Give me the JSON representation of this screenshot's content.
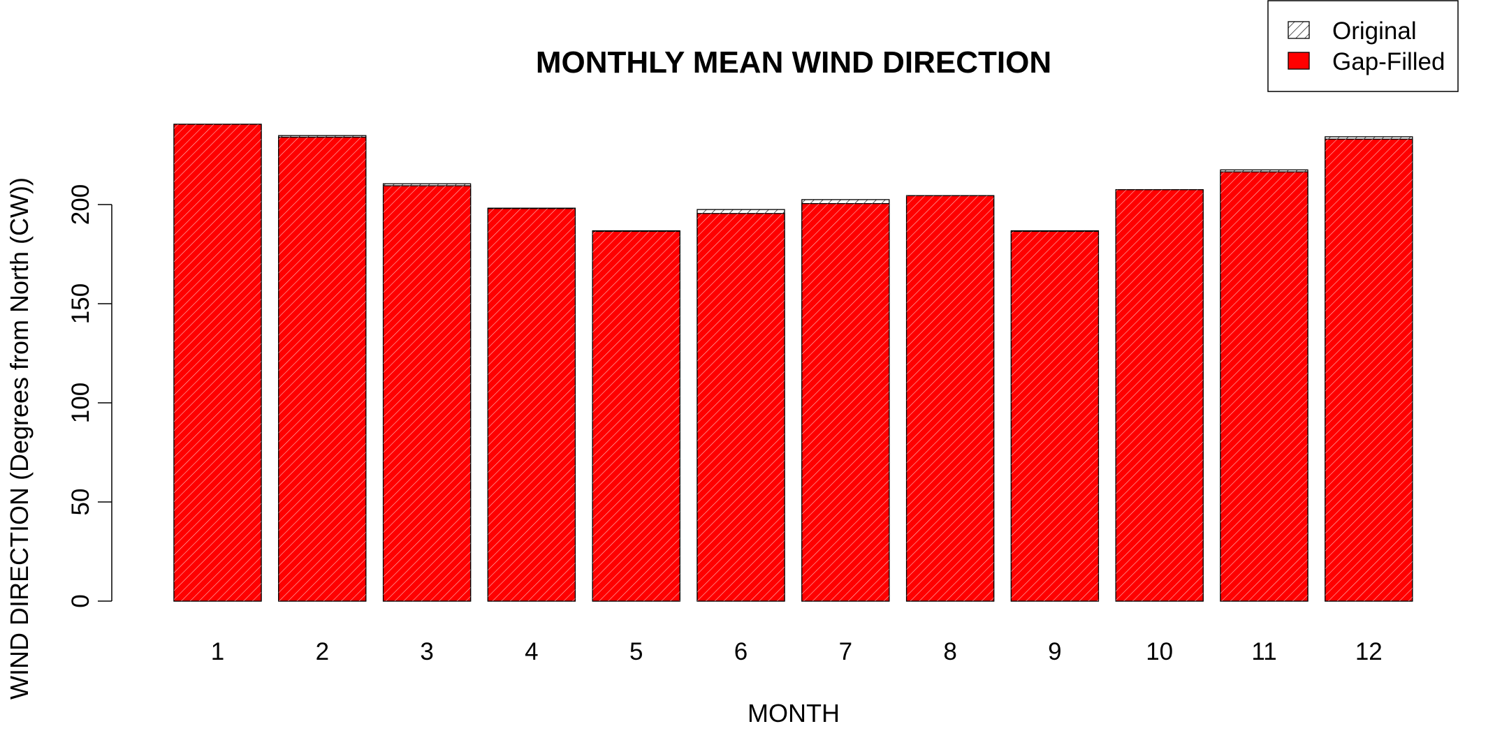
{
  "chart_data": {
    "type": "bar",
    "title": "MONTHLY MEAN WIND DIRECTION",
    "xlabel": "MONTH",
    "ylabel": "WIND DIRECTION (Degrees from North (CW))",
    "categories": [
      "1",
      "2",
      "3",
      "4",
      "5",
      "6",
      "7",
      "8",
      "9",
      "10",
      "11",
      "12"
    ],
    "series": [
      {
        "name": "Original",
        "fill": "hatched",
        "values": [
          240.5,
          234.8,
          210.5,
          198.2,
          186.8,
          197.5,
          202.5,
          204.5,
          186.8,
          207.5,
          217.5,
          234.2
        ]
      },
      {
        "name": "Gap-Filled",
        "fill": "#ff0000",
        "values": [
          240.5,
          234.0,
          209.5,
          198.0,
          186.5,
          195.5,
          200.5,
          204.5,
          186.5,
          207.5,
          216.5,
          233.0
        ]
      }
    ],
    "ylim": [
      0,
      240.5
    ],
    "yticks": [
      0,
      50,
      100,
      150,
      200
    ],
    "grid": false,
    "legend": {
      "position": "top-right",
      "entries": [
        {
          "label": "Original",
          "swatch": "hatched"
        },
        {
          "label": "Gap-Filled",
          "swatch": "#ff0000"
        }
      ]
    }
  }
}
